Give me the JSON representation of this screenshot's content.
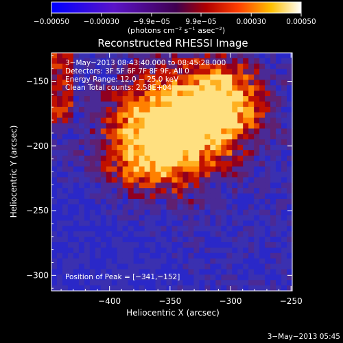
{
  "chart_data": {
    "type": "heatmap",
    "title": "Reconstructed RHESSI Image",
    "xlabel": "Heliocentric X (arcsec)",
    "ylabel": "Heliocentric Y (arcsec)",
    "xlim": [
      -448,
      -249
    ],
    "ylim": [
      -312,
      -128
    ],
    "x_ticks": [
      -400,
      -350,
      -300,
      -250
    ],
    "x_tick_labels": [
      "−400",
      "−350",
      "−300",
      "−250"
    ],
    "y_ticks": [
      -150,
      -200,
      -250,
      -300
    ],
    "y_tick_labels": [
      "−150",
      "−200",
      "−250",
      "−300"
    ],
    "colorbar": {
      "ticks": [
        -0.0005,
        -0.0003,
        -9.9e-05,
        9.9e-05,
        0.0003,
        0.0005
      ],
      "tick_labels": [
        "−0.00050",
        "−0.00030",
        "−9.9e−05",
        "9.9e−05",
        "0.00030",
        "0.00050"
      ],
      "range": [
        -0.0005,
        0.0005
      ],
      "unit_text": "(photons cm",
      "unit_exp1": "−2",
      "unit_mid": " s",
      "unit_exp2": "−1",
      "unit_tail": " asec",
      "unit_exp3": "−2",
      "unit_close": ")"
    },
    "annotations": [
      "3−May−2013 08:43:40.000 to 08:45:28.000",
      "Detectors: 3F 5F 6F 7F 8F 9F, All 0",
      "Energy Range: 12.0 − 25.0 keV",
      "Clean    Total counts: 2.58E+04"
    ],
    "peak_label": "Position of Peak = [−341,−152]",
    "peak": [
      -341,
      -152
    ],
    "colors": {
      "negative_bg": "#4a2a96",
      "negative_deep": "#2a28c8",
      "positive_low": "#c01000",
      "positive_mid": "#ff8000",
      "positive_high": "#ffe080"
    }
  },
  "footer": {
    "date": "3−May−2013 05:45"
  }
}
